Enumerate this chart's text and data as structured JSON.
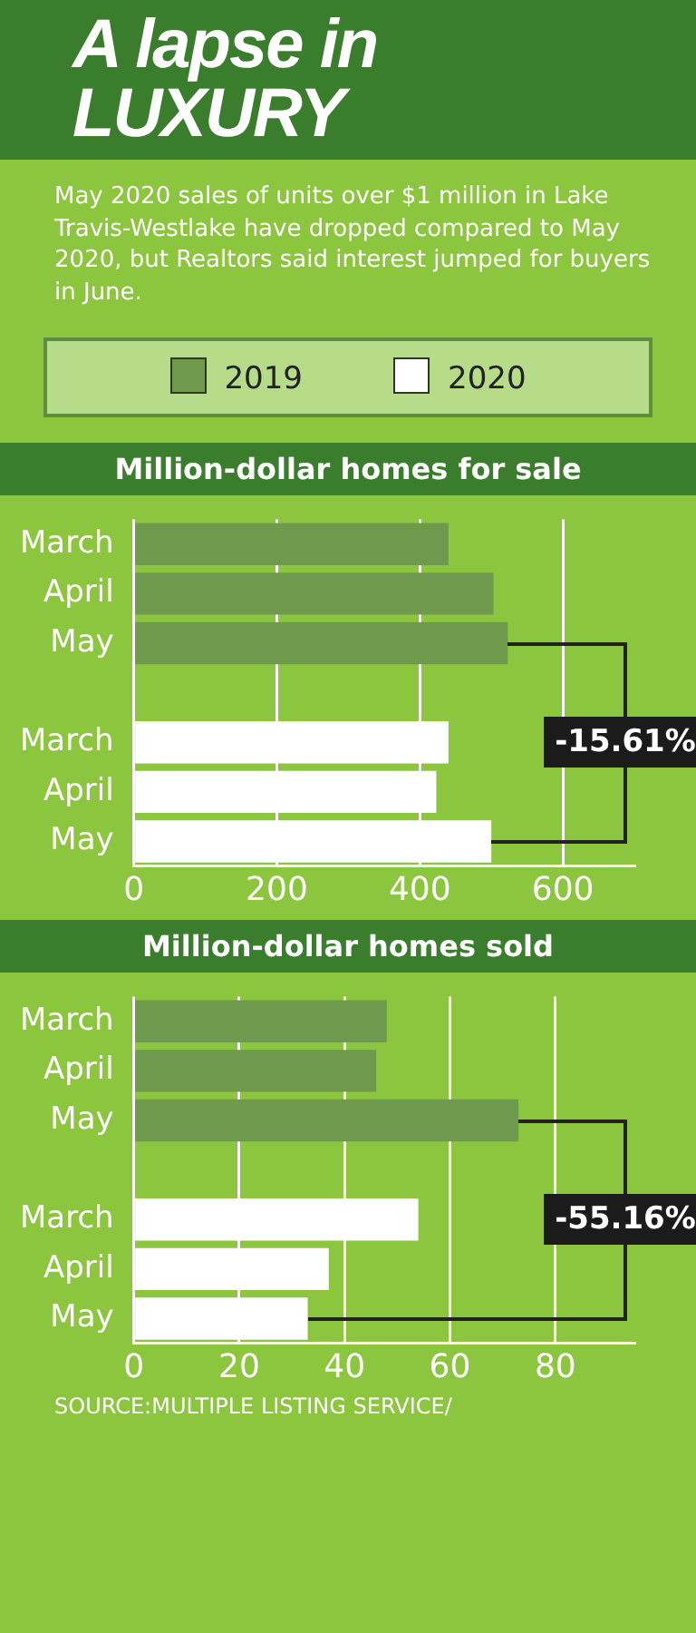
{
  "chart_data": [
    {
      "type": "other",
      "title": "A lapse in LUXURY",
      "annotations": [
        "May 2020 sales of units over $1 million in Lake Travis-Westlake have dropped compared to May 2020, but Realtors said interest  jumped for buyers in June."
      ]
    },
    {
      "type": "bar",
      "orientation": "horizontal",
      "title": "Million-dollar homes for sale",
      "categories": [
        "March",
        "April",
        "May",
        null,
        "March",
        "April",
        "May"
      ],
      "series": [
        {
          "name": "2019",
          "color": "#6f9a4e",
          "values": [
            440,
            503,
            523,
            null,
            null,
            null,
            null
          ]
        },
        {
          "name": "2020",
          "color": "#ffffff",
          "values": [
            null,
            null,
            null,
            null,
            440,
            423,
            500
          ]
        }
      ],
      "xlim": [
        0,
        700
      ],
      "xticks": [
        0,
        200,
        400,
        600
      ],
      "grid": "x",
      "legend": "top",
      "annotations": [
        "-15.61%"
      ]
    },
    {
      "type": "bar",
      "orientation": "horizontal",
      "title": "Million-dollar homes sold",
      "categories": [
        "March",
        "April",
        "May",
        null,
        "March",
        "April",
        "May"
      ],
      "series": [
        {
          "color": "#6f9a4e",
          "values": [
            48,
            46,
            73,
            null,
            null,
            null,
            null
          ]
        },
        {
          "color": "#ffffff",
          "values": [
            null,
            null,
            null,
            null,
            54,
            37,
            33
          ]
        }
      ],
      "xlim": [
        0,
        95
      ],
      "xticks": [
        0,
        20,
        40,
        60,
        80
      ],
      "grid": "x",
      "annotations": [
        "-55.16%",
        "SOURCE:MULTIPLE LISTING SERVICE/"
      ]
    }
  ]
}
